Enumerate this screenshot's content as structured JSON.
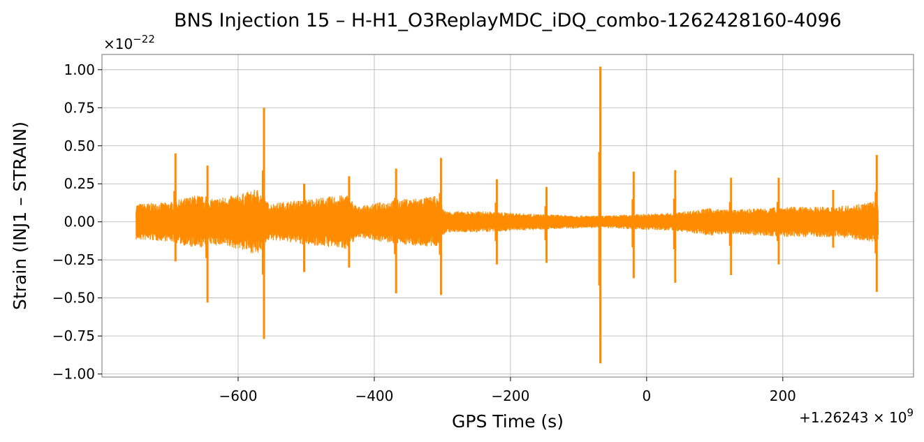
{
  "chart_data": {
    "type": "line",
    "title": "BNS Injection 15 – H-H1_O3ReplayMDC_iDQ_combo-1262428160-4096",
    "xlabel": "GPS Time (s)",
    "ylabel": "Strain (INJ1 – STRAIN)",
    "y_multiplier_text": "×10",
    "y_multiplier_exp": "−22",
    "x_offset_text": "+1.26243 × 10",
    "x_offset_exp": "9",
    "xlim": [
      -800,
      392
    ],
    "ylim": [
      -1.02,
      1.1
    ],
    "grid": true,
    "x_ticks": [
      {
        "value": -600,
        "label": "−600"
      },
      {
        "value": -400,
        "label": "−400"
      },
      {
        "value": -200,
        "label": "−200"
      },
      {
        "value": 0,
        "label": "0"
      },
      {
        "value": 200,
        "label": "200"
      }
    ],
    "y_ticks": [
      {
        "value": 1.0,
        "label": "1.00"
      },
      {
        "value": 0.75,
        "label": "0.75"
      },
      {
        "value": 0.5,
        "label": "0.50"
      },
      {
        "value": 0.25,
        "label": "0.25"
      },
      {
        "value": 0.0,
        "label": "0.00"
      },
      {
        "value": -0.25,
        "label": "−0.25"
      },
      {
        "value": -0.5,
        "label": "−0.50"
      },
      {
        "value": -0.75,
        "label": "−0.75"
      },
      {
        "value": -1.0,
        "label": "−1.00"
      }
    ],
    "series": [
      {
        "color": "#ff8c00",
        "x_range": [
          -750,
          340
        ],
        "envelope": [
          {
            "x": -750,
            "amp": 0.12
          },
          {
            "x": -700,
            "amp": 0.13
          },
          {
            "x": -660,
            "amp": 0.18
          },
          {
            "x": -640,
            "amp": 0.15
          },
          {
            "x": -600,
            "amp": 0.18
          },
          {
            "x": -570,
            "amp": 0.22
          },
          {
            "x": -555,
            "amp": 0.12
          },
          {
            "x": -500,
            "amp": 0.15
          },
          {
            "x": -440,
            "amp": 0.18
          },
          {
            "x": -425,
            "amp": 0.1
          },
          {
            "x": -380,
            "amp": 0.14
          },
          {
            "x": -310,
            "amp": 0.17
          },
          {
            "x": -295,
            "amp": 0.07
          },
          {
            "x": -240,
            "amp": 0.07
          },
          {
            "x": -150,
            "amp": 0.05
          },
          {
            "x": -70,
            "amp": 0.04
          },
          {
            "x": -20,
            "amp": 0.05
          },
          {
            "x": 40,
            "amp": 0.06
          },
          {
            "x": 90,
            "amp": 0.09
          },
          {
            "x": 125,
            "amp": 0.08
          },
          {
            "x": 200,
            "amp": 0.1
          },
          {
            "x": 280,
            "amp": 0.1
          },
          {
            "x": 340,
            "amp": 0.14
          }
        ],
        "spikes": [
          {
            "x": -692,
            "max": 0.45,
            "min": -0.26
          },
          {
            "x": -645,
            "max": 0.37,
            "min": -0.53
          },
          {
            "x": -562,
            "max": 0.75,
            "min": -0.77
          },
          {
            "x": -503,
            "max": 0.25,
            "min": -0.33
          },
          {
            "x": -437,
            "max": 0.3,
            "min": -0.3
          },
          {
            "x": -368,
            "max": 0.35,
            "min": -0.47
          },
          {
            "x": -302,
            "max": 0.42,
            "min": -0.48
          },
          {
            "x": -220,
            "max": 0.28,
            "min": -0.28
          },
          {
            "x": -147,
            "max": 0.23,
            "min": -0.27
          },
          {
            "x": -68,
            "max": 1.02,
            "min": -0.93
          },
          {
            "x": -19,
            "max": 0.33,
            "min": -0.37
          },
          {
            "x": 42,
            "max": 0.34,
            "min": -0.4
          },
          {
            "x": 124,
            "max": 0.29,
            "min": -0.35
          },
          {
            "x": 194,
            "max": 0.29,
            "min": -0.28
          },
          {
            "x": 274,
            "max": 0.21,
            "min": -0.17
          },
          {
            "x": 338,
            "max": 0.44,
            "min": -0.46
          }
        ]
      }
    ]
  }
}
